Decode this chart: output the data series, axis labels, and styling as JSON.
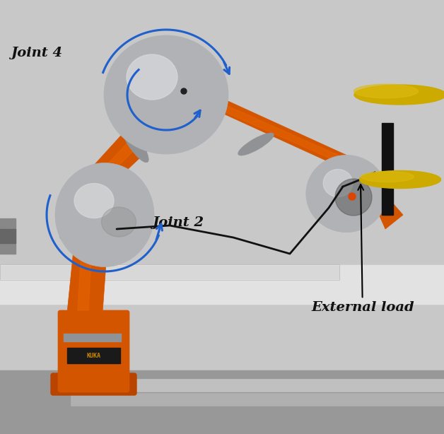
{
  "figsize": [
    6.28,
    6.14
  ],
  "dpi": 100,
  "bg_wall": "#c8c8c8",
  "bg_floor": "#b0b0b0",
  "bg_panel": "#e2e2e2",
  "orange_main": "#d45500",
  "orange_dark": "#b84400",
  "orange_light": "#e86600",
  "silver_joint": "#b0b2b5",
  "silver_light": "#d8dadc",
  "silver_dark": "#888a8c",
  "silver_band": "#909295",
  "black": "#111111",
  "yellow_disc": "#ccaa00",
  "yellow_light": "#ddbb10",
  "blue_arrow": "#2060cc",
  "text_color": "#111111",
  "label_joint4": "Joint 4",
  "label_joint2": "Joint 2",
  "label_ext": "External load",
  "label_fontsize": 14,
  "figwidth": 628,
  "figheight": 614
}
